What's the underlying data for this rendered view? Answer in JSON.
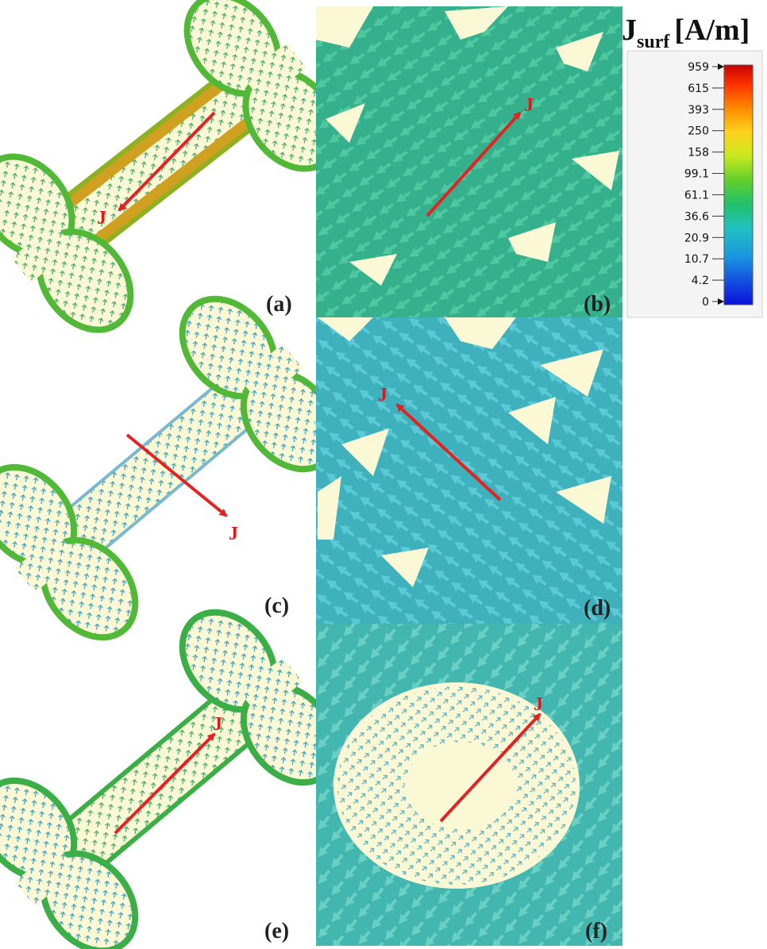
{
  "figure": {
    "colorbar": {
      "title_main": "J",
      "title_sub": "surf",
      "title_unit": "[A/m]",
      "ticks": [
        "959",
        "615",
        "393",
        "250",
        "158",
        "99.1",
        "61.1",
        "36.6",
        "20.9",
        "10.7",
        "4.2",
        "0"
      ],
      "colors": [
        "#c80000",
        "#ff2a00",
        "#ff7a00",
        "#ffb400",
        "#f2e21c",
        "#b9e21e",
        "#5ccc2a",
        "#22c05e",
        "#20c2b0",
        "#1aa6d8",
        "#1566e0",
        "#0a10d8"
      ]
    },
    "panels": [
      {
        "id": "a",
        "label": "(a)",
        "view": "full"
      },
      {
        "id": "b",
        "label": "(b)",
        "view": "zoom"
      },
      {
        "id": "c",
        "label": "(c)",
        "view": "full"
      },
      {
        "id": "d",
        "label": "(d)",
        "view": "zoom"
      },
      {
        "id": "e",
        "label": "(e)",
        "view": "full"
      },
      {
        "id": "f",
        "label": "(f)",
        "view": "zoom"
      }
    ],
    "current_label": "J",
    "colors": {
      "arrow": "#e42222",
      "sheet_bg": "#fbf8d6",
      "field_a": "#2fb889",
      "field_b": "#3ab8a8",
      "field_c": "#3ea5c8"
    }
  }
}
